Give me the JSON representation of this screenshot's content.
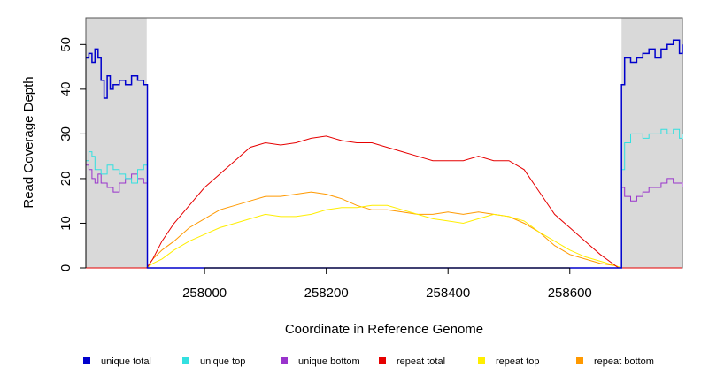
{
  "chart_data": {
    "type": "line",
    "title": "",
    "xlabel": "Coordinate in Reference Genome",
    "ylabel": "Read Coverage Depth",
    "xlim": [
      257805,
      258785
    ],
    "ylim": [
      0,
      56
    ],
    "xticks": [
      258000,
      258200,
      258400,
      258600
    ],
    "yticks": [
      0,
      10,
      20,
      30,
      40,
      50
    ],
    "grid": false,
    "legend_position": "bottom",
    "shaded_regions": [
      {
        "x": [
          257805,
          257905
        ],
        "color": "#d9d9d9"
      },
      {
        "x": [
          258685,
          258785
        ],
        "color": "#d9d9d9"
      }
    ],
    "series": [
      {
        "name": "unique total",
        "color": "#0000cc",
        "x": [
          257805,
          257810,
          257815,
          257820,
          257825,
          257830,
          257835,
          257840,
          257845,
          257850,
          257860,
          257870,
          257880,
          257890,
          257900,
          257905,
          257906,
          258684,
          258685,
          258690,
          258700,
          258710,
          258720,
          258730,
          258740,
          258750,
          258760,
          258770,
          258780,
          258785
        ],
        "y": [
          47,
          48,
          46,
          49,
          47,
          42,
          38,
          43,
          40,
          41,
          42,
          41,
          43,
          42,
          41,
          41,
          0,
          0,
          41,
          47,
          46,
          47,
          48,
          49,
          47,
          49,
          50,
          51,
          48,
          50
        ]
      },
      {
        "name": "unique top",
        "color": "#33e0e0",
        "x": [
          257805,
          257810,
          257815,
          257820,
          257830,
          257840,
          257850,
          257860,
          257870,
          257880,
          257890,
          257900,
          257905,
          257906,
          258684,
          258685,
          258690,
          258700,
          258710,
          258720,
          258730,
          258740,
          258750,
          258760,
          258770,
          258780,
          258785
        ],
        "y": [
          24,
          26,
          25,
          22,
          21,
          23,
          22,
          21,
          20,
          19,
          22,
          23,
          23,
          0,
          0,
          22,
          28,
          30,
          30,
          29,
          30,
          30,
          31,
          30,
          31,
          29,
          30
        ]
      },
      {
        "name": "unique bottom",
        "color": "#9933cc",
        "x": [
          257805,
          257810,
          257815,
          257820,
          257825,
          257830,
          257840,
          257850,
          257860,
          257870,
          257880,
          257890,
          257900,
          257905,
          257906,
          258684,
          258685,
          258690,
          258700,
          258710,
          258720,
          258730,
          258740,
          258750,
          258760,
          258770,
          258780,
          258785
        ],
        "y": [
          23,
          22,
          20,
          19,
          21,
          19,
          18,
          17,
          19,
          20,
          21,
          20,
          19,
          19,
          0,
          0,
          18,
          16,
          15,
          16,
          17,
          18,
          18,
          19,
          20,
          19,
          19,
          18
        ]
      },
      {
        "name": "repeat total",
        "color": "#e60000",
        "x": [
          257805,
          257905,
          257915,
          257930,
          257950,
          257975,
          258000,
          258025,
          258050,
          258075,
          258100,
          258125,
          258150,
          258175,
          258200,
          258225,
          258250,
          258275,
          258300,
          258325,
          258350,
          258375,
          258400,
          258425,
          258450,
          258475,
          258500,
          258525,
          258550,
          258575,
          258600,
          258625,
          258650,
          258670,
          258680,
          258785
        ],
        "y": [
          0,
          0,
          2,
          6,
          10,
          14,
          18,
          21,
          24,
          27,
          28,
          27.5,
          28,
          29,
          29.5,
          28.5,
          28,
          28,
          27,
          26,
          25,
          24,
          24,
          24,
          25,
          24,
          24,
          22,
          17,
          12,
          9,
          6,
          3,
          1,
          0,
          0
        ]
      },
      {
        "name": "repeat top",
        "color": "#ffee00",
        "x": [
          257805,
          257905,
          257915,
          257930,
          257950,
          257975,
          258000,
          258025,
          258050,
          258075,
          258100,
          258125,
          258150,
          258175,
          258200,
          258225,
          258250,
          258275,
          258300,
          258325,
          258350,
          258375,
          258400,
          258425,
          258450,
          258475,
          258500,
          258525,
          258550,
          258575,
          258600,
          258625,
          258650,
          258675,
          258685,
          258785
        ],
        "y": [
          0,
          0,
          1,
          2,
          4,
          6,
          7.5,
          9,
          10,
          11,
          12,
          11.5,
          11.5,
          12,
          13,
          13.5,
          13.5,
          14,
          14,
          13,
          12,
          11,
          10.5,
          10,
          11,
          12,
          11.5,
          10.5,
          8,
          6,
          4,
          2.5,
          1.5,
          0.5,
          0,
          0
        ]
      },
      {
        "name": "repeat bottom",
        "color": "#ff9900",
        "x": [
          257805,
          257905,
          257915,
          257930,
          257950,
          257975,
          258000,
          258025,
          258050,
          258075,
          258100,
          258125,
          258150,
          258175,
          258200,
          258225,
          258250,
          258275,
          258300,
          258325,
          258350,
          258375,
          258400,
          258425,
          258450,
          258475,
          258500,
          258525,
          258550,
          258575,
          258600,
          258625,
          258650,
          258675,
          258685,
          258785
        ],
        "y": [
          0,
          0,
          2,
          4,
          6,
          9,
          11,
          13,
          14,
          15,
          16,
          16,
          16.5,
          17,
          16.5,
          15.5,
          14,
          13,
          13,
          12.5,
          12,
          12,
          12.5,
          12,
          12.5,
          12,
          11.5,
          10,
          8,
          5,
          3,
          2,
          1,
          0.5,
          0,
          0
        ]
      }
    ]
  }
}
